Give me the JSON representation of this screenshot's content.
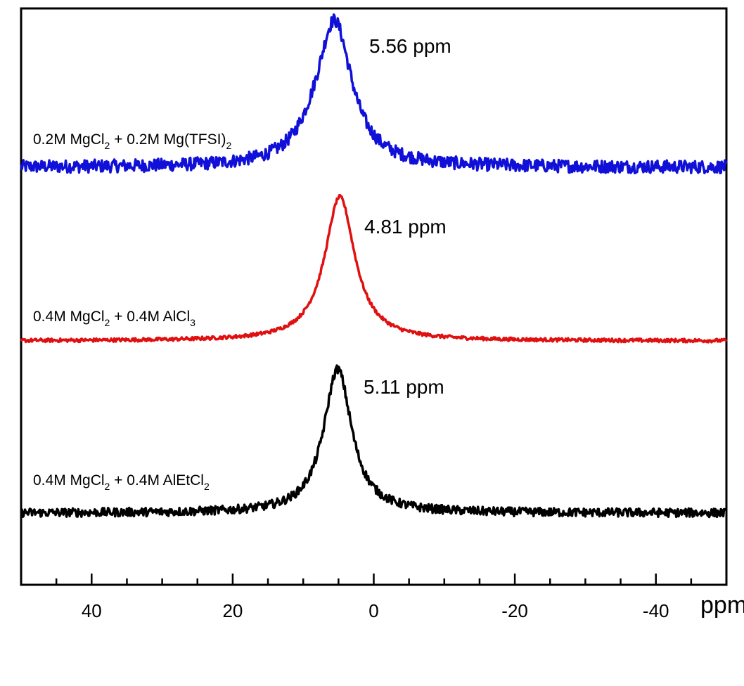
{
  "chart_data": {
    "type": "line",
    "title": "",
    "xlabel": "ppm",
    "ylabel": "",
    "xlim": [
      50,
      -50
    ],
    "x_reversed": true,
    "x_ticks": [
      40,
      20,
      0,
      -20,
      -40
    ],
    "x_tick_labels": [
      "40",
      "20",
      "0",
      "-20",
      "-40"
    ],
    "x_minor_step": 5,
    "y_ticks": [],
    "grid": false,
    "legend": "none",
    "series": [
      {
        "label_parts": [
          {
            "t": "0.2M MgCl"
          },
          {
            "t": "2",
            "sub": true
          },
          {
            "t": " + 0.2M Mg(TFSI)"
          },
          {
            "t": "2",
            "sub": true
          }
        ],
        "color": "#1010d8",
        "peak_label": "5.56 ppm",
        "peak_x": 5.56,
        "relative_height": 1.0,
        "noise": 0.045
      },
      {
        "label_parts": [
          {
            "t": "0.4M MgCl"
          },
          {
            "t": "2",
            "sub": true
          },
          {
            "t": " + 0.4M AlCl"
          },
          {
            "t": "3",
            "sub": true
          }
        ],
        "color": "#e01010",
        "peak_label": "4.81 ppm",
        "peak_x": 4.81,
        "relative_height": 1.0,
        "noise": 0.012
      },
      {
        "label_parts": [
          {
            "t": "0.4M MgCl"
          },
          {
            "t": "2",
            "sub": true
          },
          {
            "t": " + 0.4M AlEtCl"
          },
          {
            "t": "2",
            "sub": true
          }
        ],
        "color": "#000000",
        "peak_label": "5.11 ppm",
        "peak_x": 5.11,
        "relative_height": 1.0,
        "noise": 0.03
      }
    ]
  }
}
